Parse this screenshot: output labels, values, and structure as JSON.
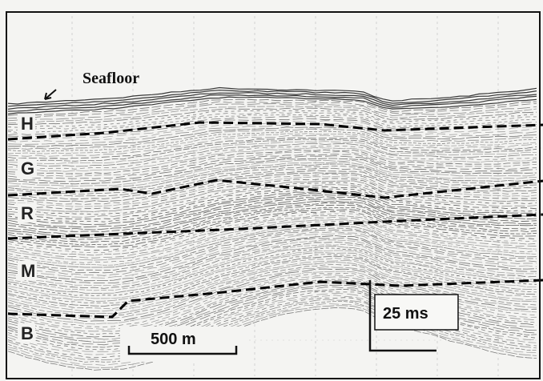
{
  "profile": {
    "seafloor_label": "Seafloor",
    "units": [
      "H",
      "G",
      "R",
      "M",
      "B"
    ],
    "horizontal_scale": "500 m",
    "vertical_scale": "25 ms"
  }
}
